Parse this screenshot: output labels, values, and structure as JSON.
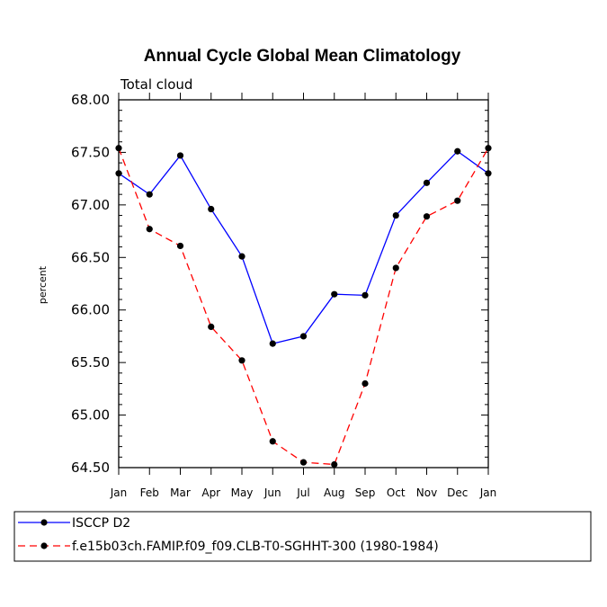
{
  "chart_data": {
    "type": "line",
    "title": "Annual Cycle Global Mean Climatology",
    "subtitle": "Total cloud",
    "xlabel": "",
    "ylabel": "percent",
    "ylim": [
      64.5,
      68.0
    ],
    "y_ticks": [
      "64.50",
      "65.00",
      "65.50",
      "66.00",
      "66.50",
      "67.00",
      "67.50",
      "68.00"
    ],
    "y_tick_values": [
      64.5,
      65.0,
      65.5,
      66.0,
      66.5,
      67.0,
      67.5,
      68.0
    ],
    "categories": [
      "Jan",
      "Feb",
      "Mar",
      "Apr",
      "May",
      "Jun",
      "Jul",
      "Aug",
      "Sep",
      "Oct",
      "Nov",
      "Dec",
      "Jan"
    ],
    "series": [
      {
        "name": "ISCCP D2",
        "color": "#0000ff",
        "dash": "solid",
        "values": [
          67.3,
          67.1,
          67.47,
          66.96,
          66.51,
          65.68,
          65.75,
          66.15,
          66.14,
          66.9,
          67.21,
          67.51,
          67.3
        ]
      },
      {
        "name": "f.e15b03ch.FAMIP.f09_f09.CLB-T0-SGHHT-300 (1980-1984)",
        "color": "#ff0000",
        "dash": "dashed",
        "values": [
          67.54,
          66.77,
          66.61,
          65.84,
          65.52,
          64.75,
          64.55,
          64.53,
          65.3,
          66.4,
          66.89,
          67.04,
          67.54
        ]
      }
    ],
    "legend_position": "bottom-left"
  }
}
